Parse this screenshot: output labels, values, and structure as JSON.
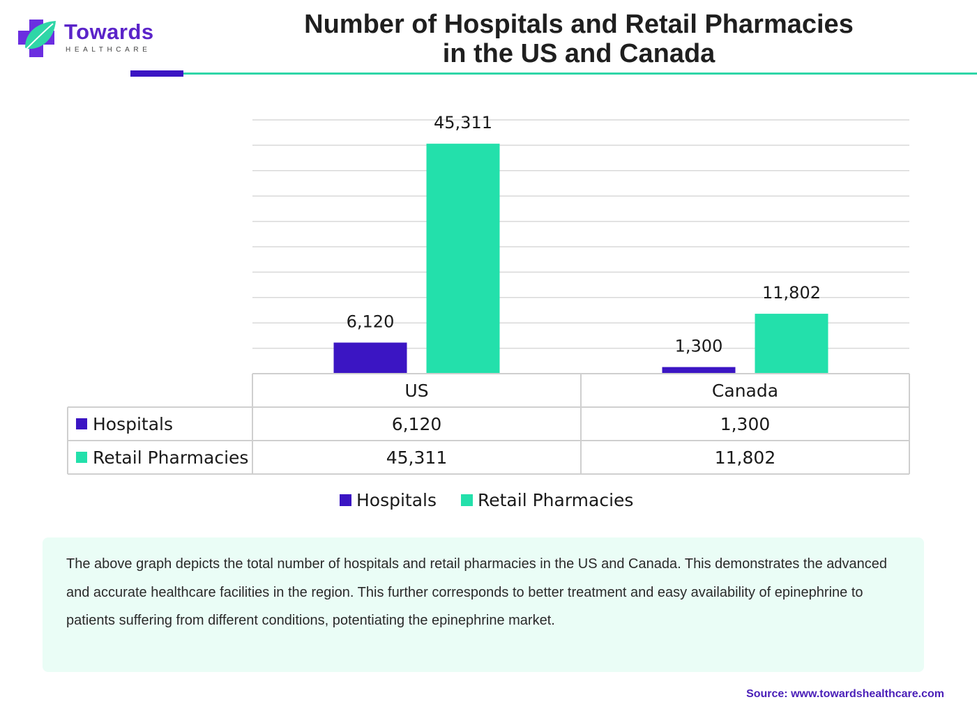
{
  "brand": {
    "name": "Towards",
    "tagline": "HEALTHCARE",
    "primary_color": "#5b24c9",
    "accent_color": "#2fd6a7",
    "logo_icon": "medical-cross-leaf-icon"
  },
  "colors": {
    "hospitals": "#3b15c3",
    "retail_pharmacies": "#23e0ab",
    "grid": "#d9d9d9",
    "description_bg": "#eafdf6",
    "source_text": "#4a1fb8"
  },
  "chart_data": {
    "type": "bar",
    "title": "Number of Hospitals and Retail Pharmacies in the US and Canada",
    "title_lines": [
      "Number of Hospitals and Retail Pharmacies",
      "in the US and Canada"
    ],
    "categories": [
      "US",
      "Canada"
    ],
    "series": [
      {
        "name": "Hospitals",
        "values": [
          6120,
          1300
        ],
        "labels": [
          "6,120",
          "1,300"
        ],
        "color": "#3b15c3"
      },
      {
        "name": "Retail Pharmacies",
        "values": [
          45311,
          11802
        ],
        "labels": [
          "45,311",
          "11,802"
        ],
        "color": "#23e0ab"
      }
    ],
    "ylim": [
      0,
      50000
    ],
    "y_tick_step": 5000,
    "grid": true,
    "legend": "bottom-center",
    "data_table": true
  },
  "description": "The above graph depicts the total number of hospitals and retail pharmacies in the US and Canada. This demonstrates the advanced and accurate healthcare facilities in the region. This further corresponds to better treatment and easy availability of epinephrine to patients suffering from different conditions, potentiating the epinephrine market.",
  "source": "Source: www.towardshealthcare.com"
}
